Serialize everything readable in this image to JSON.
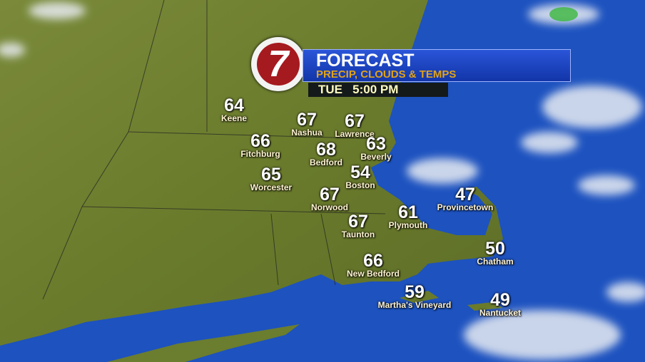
{
  "header": {
    "logo": "7",
    "title": "FORECAST",
    "subtitle": "PRECIP, CLOUDS & TEMPS",
    "time": "TUE   5:00 PM"
  },
  "colors": {
    "ocean": "#1a4fb8",
    "land": "#6b7f2e",
    "banner": "#1d44c4",
    "subtitle": "#e0a21a",
    "logo": "#a51a1f"
  },
  "cities": [
    {
      "name": "Keene",
      "temp": "64"
    },
    {
      "name": "Nashua",
      "temp": "67"
    },
    {
      "name": "Lawrence",
      "temp": "67"
    },
    {
      "name": "Fitchburg",
      "temp": "66"
    },
    {
      "name": "Bedford",
      "temp": "68"
    },
    {
      "name": "Beverly",
      "temp": "63"
    },
    {
      "name": "Worcester",
      "temp": "65"
    },
    {
      "name": "Boston",
      "temp": "54"
    },
    {
      "name": "Norwood",
      "temp": "67"
    },
    {
      "name": "Provincetown",
      "temp": "47"
    },
    {
      "name": "Taunton",
      "temp": "67"
    },
    {
      "name": "Plymouth",
      "temp": "61"
    },
    {
      "name": "Chatham",
      "temp": "50"
    },
    {
      "name": "New Bedford",
      "temp": "66"
    },
    {
      "name": "Martha's Vineyard",
      "temp": "59"
    },
    {
      "name": "Nantucket",
      "temp": "49"
    }
  ]
}
